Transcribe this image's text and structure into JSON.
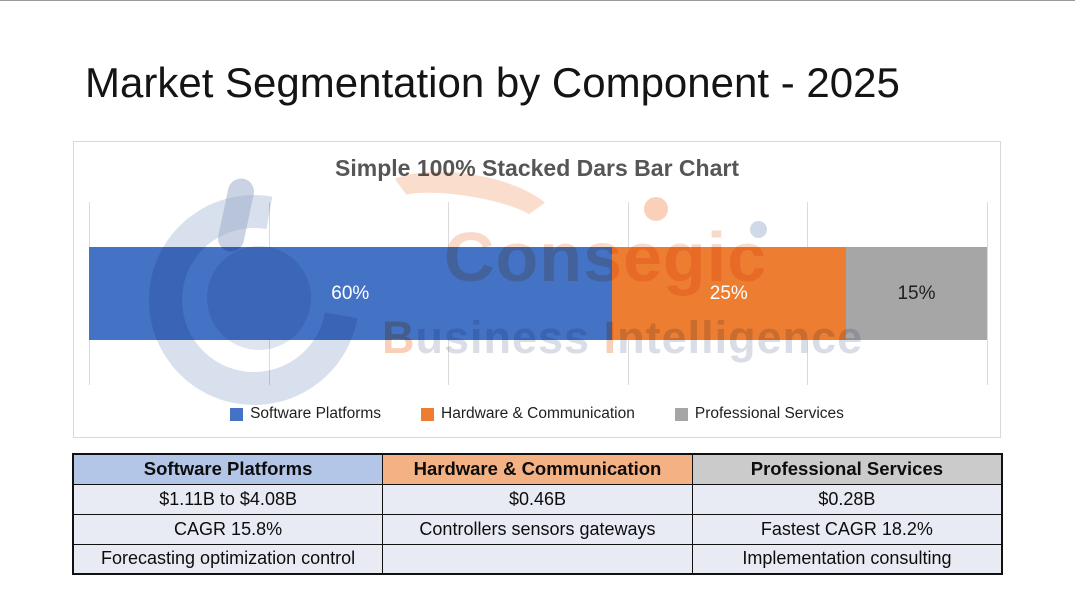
{
  "page": {
    "title": "Market Segmentation by Component - 2025"
  },
  "chart_data": {
    "type": "bar",
    "subtype": "100% stacked horizontal single bar",
    "title": "Simple 100% Stacked Dars Bar Chart",
    "series": [
      {
        "name": "Software Platforms",
        "value": 60,
        "label": "60%",
        "color": "#4472C4",
        "label_color": "#FFFFFF",
        "width_pct": 58.2
      },
      {
        "name": "Hardware & Communication",
        "value": 25,
        "label": "25%",
        "color": "#ED7D31",
        "label_color": "#FFFFFF",
        "width_pct": 26.1
      },
      {
        "name": "Professional Services",
        "value": 15,
        "label": "15%",
        "color": "#A6A6A6",
        "label_color": "#1F1F1F",
        "width_pct": 15.7
      }
    ],
    "unit": "%",
    "xlim": [
      0,
      100
    ],
    "gridline_percents": [
      0,
      20,
      40,
      60,
      80,
      100
    ],
    "grid": true,
    "legend_position": "bottom"
  },
  "watermark": {
    "brand": "Consegic",
    "tagline": "Business Intelligence"
  },
  "table": {
    "headers": [
      {
        "label": "Software Platforms",
        "bg": "#B4C6E7"
      },
      {
        "label": "Hardware & Communication",
        "bg": "#F4B183"
      },
      {
        "label": "Professional Services",
        "bg": "#CBCBCB"
      }
    ],
    "rows": [
      [
        "$1.11B to $4.08B",
        "$0.46B",
        "$0.28B"
      ],
      [
        "CAGR 15.8%",
        "Controllers sensors gateways",
        "Fastest CAGR 18.2%"
      ],
      [
        "Forecasting optimization control",
        "",
        "Implementation consulting"
      ]
    ],
    "body_bg": "#E9EBF4"
  }
}
